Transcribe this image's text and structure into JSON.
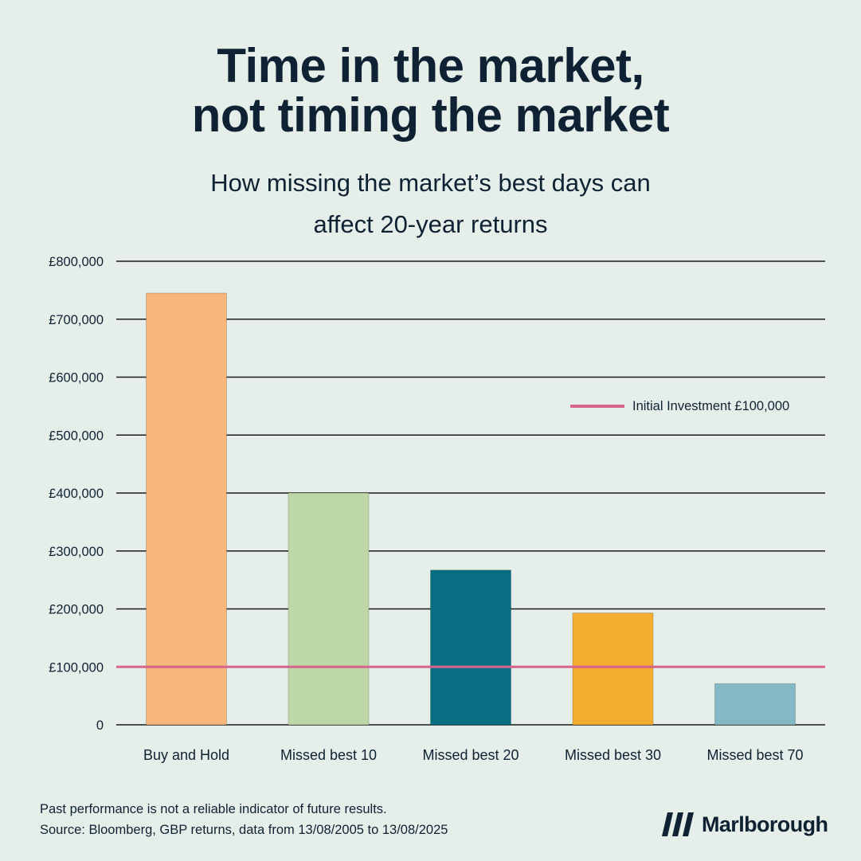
{
  "header": {
    "title_line1": "Time in the market,",
    "title_line2": "not timing the market",
    "subtitle_line1": "How missing the market’s best days can",
    "subtitle_line2": "affect 20-year returns"
  },
  "chart_data": {
    "type": "bar",
    "categories": [
      "Buy and Hold",
      "Missed best 10",
      "Missed best 20",
      "Missed best 30",
      "Missed best 70"
    ],
    "values": [
      745000,
      400000,
      267000,
      193000,
      71000
    ],
    "bar_colors": [
      "#f6b67c",
      "#bdd7a8",
      "#086e82",
      "#f5ad31",
      "#84b8c4"
    ],
    "ylim": [
      0,
      800000
    ],
    "yticks": [
      0,
      100000,
      200000,
      300000,
      400000,
      500000,
      600000,
      700000,
      800000
    ],
    "ytick_labels": [
      "0",
      "£100,000",
      "£200,000",
      "£300,000",
      "£400,000",
      "£500,000",
      "£600,000",
      "£700,000",
      "£800,000"
    ],
    "grid": true,
    "reference_line": {
      "value": 100000,
      "label": "Initial Investment £100,000",
      "color": "#d6648c"
    },
    "legend_placement": "right"
  },
  "footer": {
    "note_line1": "Past performance is not a reliable indicator of future results.",
    "note_line2": "Source: Bloomberg, GBP returns, data from 13/08/2005  to 13/08/2025",
    "brand": "Marlborough",
    "brand_icon": "marlborough-logo-icon"
  }
}
